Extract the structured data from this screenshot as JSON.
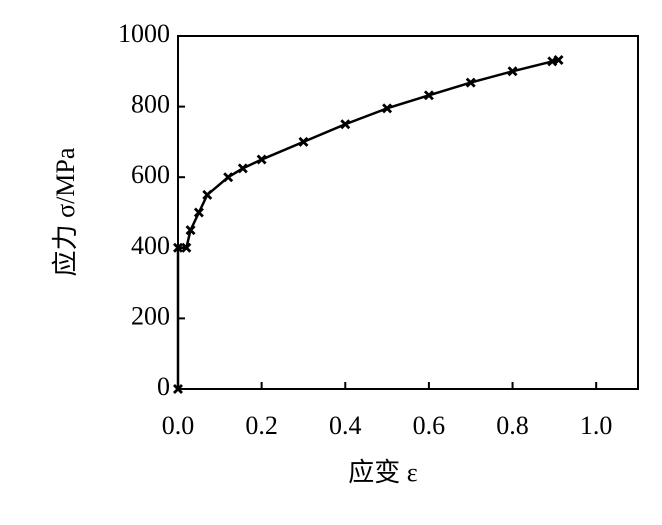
{
  "chart_data": {
    "type": "line",
    "x_label": "应变 ε",
    "y_label": "应力 σ/MPa",
    "series": [
      {
        "color": "#000000",
        "x": [
          0,
          0,
          0.02,
          0.03,
          0.05,
          0.07,
          0.12,
          0.155,
          0.2,
          0.3,
          0.4,
          0.5,
          0.6,
          0.7,
          0.8,
          0.895,
          0.91
        ],
        "values": [
          0,
          400,
          400,
          450,
          500,
          550,
          600,
          625,
          650,
          700,
          750,
          795,
          832,
          868,
          900,
          928,
          932
        ]
      }
    ],
    "xlim": [
      0,
      1.1
    ],
    "ylim": [
      0,
      1000
    ],
    "xticks": [
      {
        "value": 0,
        "label": "0.0"
      },
      0.2,
      0.4,
      0.6,
      0.8,
      {
        "value": 1,
        "label": "1.0"
      }
    ],
    "yticks": [
      0,
      200,
      400,
      600,
      800,
      1000
    ]
  }
}
